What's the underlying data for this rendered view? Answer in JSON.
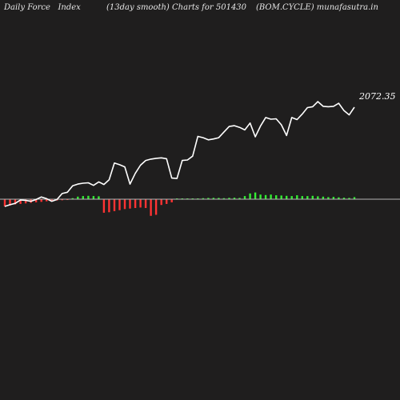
{
  "header": {
    "left": "Daily Force   Index",
    "middle": "(13day smooth) Charts for 501430",
    "right": "(BOM.CYCLE) munafasutra.in"
  },
  "colors": {
    "background": "#1f1e1e",
    "line": "#ffffff",
    "positive_bar": "#33ee33",
    "negative_bar": "#ff3333",
    "zero_line": "#b4b4b4"
  },
  "chart_data": {
    "type": "line",
    "last_value_label": "2072.35",
    "price_series": [
      0.98,
      1.02,
      1.05,
      1.13,
      1.12,
      1.1,
      1.14,
      1.2,
      1.16,
      1.1,
      1.14,
      1.28,
      1.31,
      1.46,
      1.5,
      1.52,
      1.53,
      1.47,
      1.55,
      1.49,
      1.6,
      1.99,
      1.95,
      1.9,
      1.5,
      1.75,
      1.94,
      2.05,
      2.08,
      2.1,
      2.11,
      2.09,
      1.64,
      1.63,
      2.05,
      2.06,
      2.15,
      2.61,
      2.58,
      2.53,
      2.55,
      2.58,
      2.71,
      2.84,
      2.86,
      2.82,
      2.76,
      2.92,
      2.6,
      2.85,
      3.05,
      3.01,
      3.02,
      2.88,
      2.63,
      3.05,
      3.0,
      3.13,
      3.28,
      3.3,
      3.42,
      3.31,
      3.3,
      3.31,
      3.38,
      3.21,
      3.11,
      3.29
    ],
    "force_series": [
      -0.7,
      -0.6,
      -0.5,
      -0.45,
      -0.4,
      -0.35,
      -0.3,
      -0.25,
      -0.2,
      -0.15,
      -0.12,
      -0.1,
      -0.05,
      0.1,
      0.25,
      0.3,
      0.32,
      0.3,
      0.28,
      -1.3,
      -1.25,
      -1.15,
      -1.05,
      -0.95,
      -0.9,
      -0.85,
      -0.8,
      -0.85,
      -1.6,
      -1.5,
      -0.55,
      -0.45,
      -0.3,
      0.08,
      0.06,
      0.05,
      0.06,
      0.08,
      0.1,
      0.12,
      0.13,
      0.12,
      0.1,
      0.13,
      0.15,
      0.12,
      0.3,
      0.55,
      0.65,
      0.45,
      0.4,
      0.45,
      0.38,
      0.35,
      0.32,
      0.3,
      0.38,
      0.3,
      0.3,
      0.32,
      0.28,
      0.25,
      0.2,
      0.22,
      0.18,
      0.15,
      0.12,
      0.2
    ]
  }
}
